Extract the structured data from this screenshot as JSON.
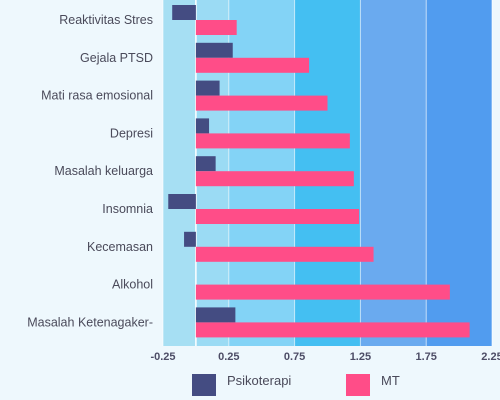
{
  "chart_data": {
    "type": "bar",
    "orientation": "horizontal",
    "categories": [
      "Reaktivitas Stres",
      "Gejala PTSD",
      "Mati rasa emosional",
      "Depresi",
      "Masalah keluarga",
      "Insomnia",
      "Kecemasan",
      "Alkohol",
      "Masalah Ketenagaker-"
    ],
    "series": [
      {
        "name": "Psikoterapi",
        "color": "#444c82",
        "values": [
          -0.18,
          0.28,
          0.18,
          0.1,
          0.15,
          -0.21,
          -0.09,
          0.0,
          0.3
        ]
      },
      {
        "name": "MT",
        "color": "#ff4d88",
        "values": [
          0.31,
          0.86,
          1.0,
          1.17,
          1.2,
          1.24,
          1.35,
          1.93,
          2.08
        ]
      }
    ],
    "xlim": [
      -0.25,
      2.25
    ],
    "xticks": [
      "-0.25",
      "0.25",
      "0.75",
      "1.25",
      "1.75",
      "2.25"
    ],
    "tick_values": [
      -0.25,
      0.25,
      0.75,
      1.25,
      1.75,
      2.25
    ],
    "bands": [
      {
        "from": -0.25,
        "to": 0.0,
        "color": "#a6dff3"
      },
      {
        "from": 0.0,
        "to": 0.25,
        "color": "#9bdbf4"
      },
      {
        "from": 0.25,
        "to": 0.75,
        "color": "#83d3f6"
      },
      {
        "from": 0.75,
        "to": 1.25,
        "color": "#44bff2"
      },
      {
        "from": 1.25,
        "to": 1.75,
        "color": "#6aaaef"
      },
      {
        "from": 1.75,
        "to": 2.25,
        "color": "#519cef"
      }
    ],
    "legend_position": "bottom"
  }
}
